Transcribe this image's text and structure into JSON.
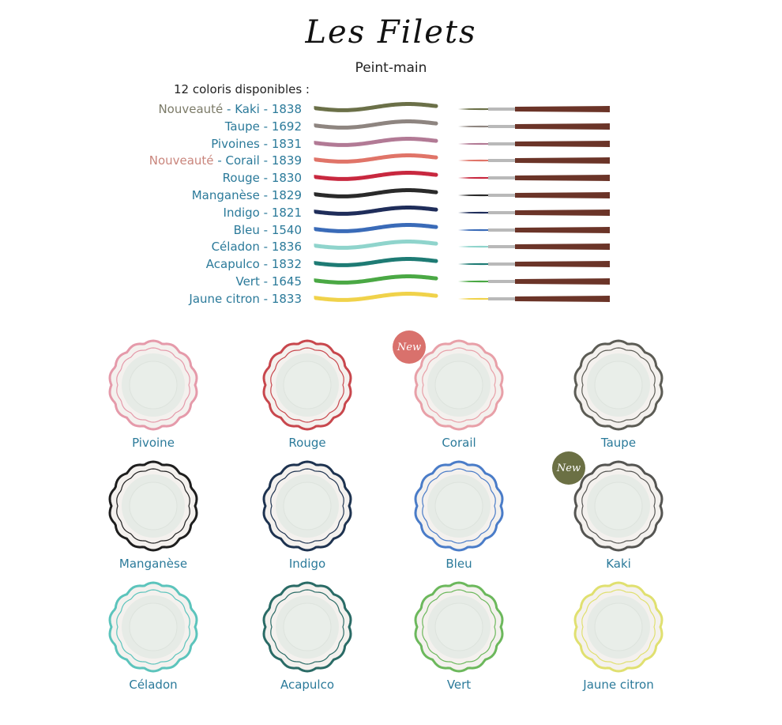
{
  "header": {
    "title": "Les Filets",
    "subtitle": "Peint-main",
    "available": "12 coloris disponibles :"
  },
  "colors": [
    {
      "prefix": "Nouveauté",
      "name": "Kaki",
      "code": "1838",
      "color": "#6b7048",
      "prefix_color": "#7c7b68"
    },
    {
      "name": "Taupe",
      "code": "1692",
      "color": "#8e8580"
    },
    {
      "name": "Pivoines",
      "code": "1831",
      "color": "#b27a95"
    },
    {
      "prefix": "Nouveauté",
      "name": "Corail",
      "code": "1839",
      "color": "#e07468",
      "prefix_color": "#c9857c"
    },
    {
      "name": "Rouge",
      "code": "1830",
      "color": "#c8283f"
    },
    {
      "name": "Manganèse",
      "code": "1829",
      "color": "#2a2a2a"
    },
    {
      "name": "Indigo",
      "code": "1821",
      "color": "#1f2d5a"
    },
    {
      "name": "Bleu",
      "code": "1540",
      "color": "#3a6bb8"
    },
    {
      "name": "Céladon",
      "code": "1836",
      "color": "#8fd4cc"
    },
    {
      "name": "Acapulco",
      "code": "1832",
      "color": "#1e7b74"
    },
    {
      "name": "Vert",
      "code": "1645",
      "color": "#4aa844"
    },
    {
      "name": "Jaune citron",
      "code": "1833",
      "color": "#f0d24a"
    }
  ],
  "plates": [
    {
      "name": "Pivoine",
      "rim": "#e59aaa"
    },
    {
      "name": "Rouge",
      "rim": "#c8474d"
    },
    {
      "name": "Corail",
      "rim": "#e8a0a8",
      "badge": "New",
      "badge_color": "#d9716c"
    },
    {
      "name": "Taupe",
      "rim": "#5c5c55"
    },
    {
      "name": "Manganèse",
      "rim": "#1e1e1e"
    },
    {
      "name": "Indigo",
      "rim": "#1e3350"
    },
    {
      "name": "Bleu",
      "rim": "#4a7cc8"
    },
    {
      "name": "Kaki",
      "rim": "#555552",
      "badge": "New",
      "badge_color": "#6b7044"
    },
    {
      "name": "Céladon",
      "rim": "#5cc4bc"
    },
    {
      "name": "Acapulco",
      "rim": "#2a6b66"
    },
    {
      "name": "Vert",
      "rim": "#6cb85c"
    },
    {
      "name": "Jaune citron",
      "rim": "#e0e070"
    }
  ]
}
